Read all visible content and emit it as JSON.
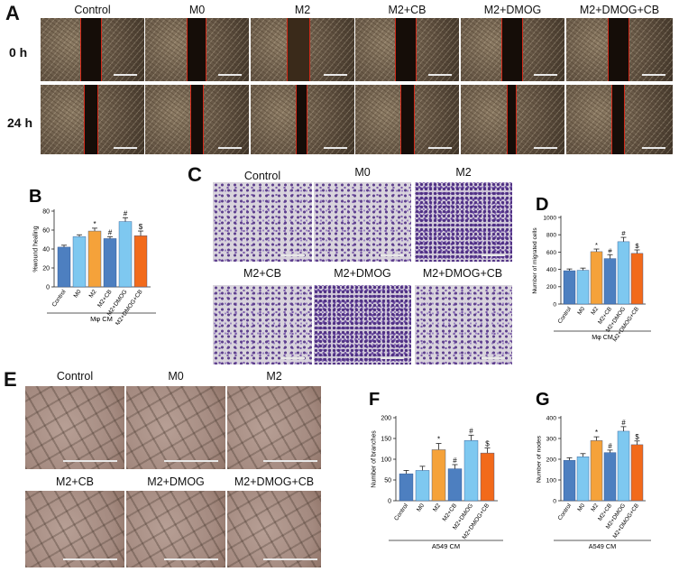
{
  "panels": {
    "A": {
      "letter": "A",
      "columns": [
        "Control",
        "M0",
        "M2",
        "M2+CB",
        "M2+DMOG",
        "M2+DMOG+CB"
      ],
      "rows": [
        "0 h",
        "24 h"
      ]
    },
    "C": {
      "letter": "C",
      "labels": [
        "Control",
        "M0",
        "M2",
        "M2+CB",
        "M2+DMOG",
        "M2+DMOG+CB"
      ]
    },
    "E": {
      "letter": "E",
      "labels": [
        "Control",
        "M0",
        "M2",
        "M2+CB",
        "M2+DMOG",
        "M2+DMOG+CB"
      ]
    }
  },
  "colors": {
    "control": "#4d7fc0",
    "m0": "#7ec8f0",
    "m2": "#f5a23a",
    "m2cb": "#4d7fc0",
    "m2dmog": "#7ec8f0",
    "m2dmogcb": "#f26a1b"
  },
  "chart_data": [
    {
      "letter": "B",
      "type": "bar",
      "categories": [
        "Control",
        "M0",
        "M2",
        "M2+CB",
        "M2+DMOG",
        "M2+DMOG+CB"
      ],
      "values": [
        42,
        53,
        59,
        51,
        69,
        54
      ],
      "errors": [
        2,
        2,
        3,
        2,
        4,
        5
      ],
      "annotations": [
        "",
        "",
        "*",
        "#",
        "#",
        "$"
      ],
      "ylabel": "%wound healing",
      "ylim": [
        0,
        80
      ],
      "yticks": [
        0,
        20,
        40,
        60,
        80
      ],
      "group_label": "Mφ CM"
    },
    {
      "letter": "D",
      "type": "bar",
      "categories": [
        "Control",
        "M0",
        "M2",
        "M2+CB",
        "M2+DMOG",
        "M2+DMOG+CB"
      ],
      "values": [
        385,
        390,
        605,
        525,
        720,
        585
      ],
      "errors": [
        20,
        25,
        30,
        45,
        50,
        40
      ],
      "annotations": [
        "",
        "",
        "*",
        "#",
        "#",
        "$"
      ],
      "ylabel": "Number of migrated cells",
      "ylim": [
        0,
        1000
      ],
      "yticks": [
        0,
        200,
        400,
        600,
        800,
        1000
      ],
      "group_label": "Mφ CM"
    },
    {
      "letter": "F",
      "type": "bar",
      "categories": [
        "Control",
        "M0",
        "M2",
        "M2+CB",
        "M2+DMOG",
        "M2+DMOG+CB"
      ],
      "values": [
        65,
        73,
        123,
        77,
        145,
        115
      ],
      "errors": [
        8,
        10,
        15,
        10,
        13,
        12
      ],
      "annotations": [
        "",
        "",
        "*",
        "#",
        "#",
        "$"
      ],
      "ylabel": "Number of branches",
      "ylim": [
        0,
        200
      ],
      "yticks": [
        0,
        50,
        100,
        150,
        200
      ],
      "group_label": "A549 CM"
    },
    {
      "letter": "G",
      "type": "bar",
      "categories": [
        "Control",
        "M0",
        "M2",
        "M2+CB",
        "M2+DMOG",
        "M2+DMOG+CB"
      ],
      "values": [
        195,
        212,
        290,
        232,
        335,
        270
      ],
      "errors": [
        12,
        15,
        18,
        12,
        22,
        18
      ],
      "annotations": [
        "",
        "",
        "*",
        "#",
        "#",
        "$"
      ],
      "ylabel": "Number of nodes",
      "ylim": [
        0,
        400
      ],
      "yticks": [
        0,
        100,
        200,
        300,
        400
      ],
      "group_label": "A549 CM"
    }
  ]
}
